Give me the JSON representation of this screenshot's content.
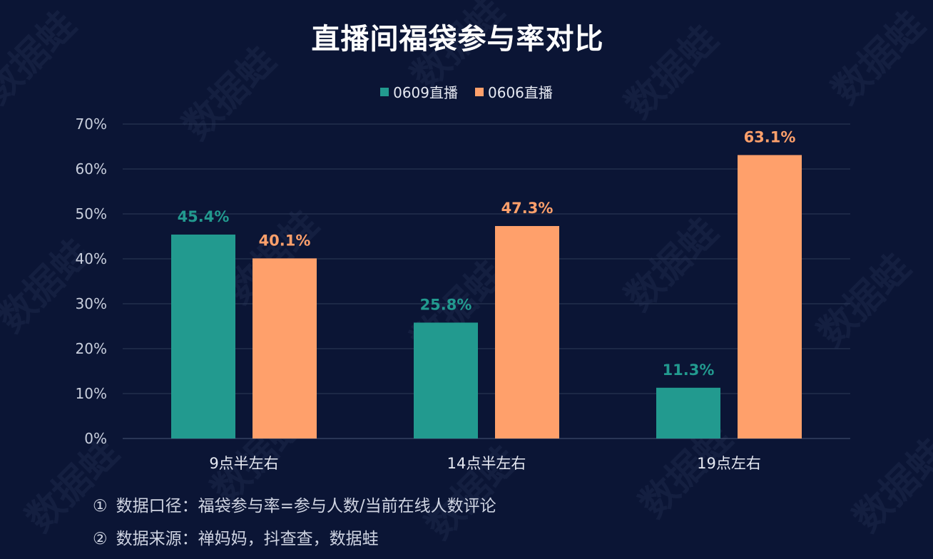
{
  "header": {
    "title": "直播间福袋参与率对比"
  },
  "watermark": {
    "text": "数据蛙"
  },
  "notes": [
    {
      "mark": "①",
      "text": "数据口径：福袋参与率=参与人数/当前在线人数评论"
    },
    {
      "mark": "②",
      "text": "数据来源：禅妈妈，抖查查，数据蛙"
    }
  ],
  "colors": {
    "series_a": "#229a8f",
    "series_b": "#ffa06b",
    "background": "#0b1535",
    "grid": "#2c3a58",
    "axis_text": "#c9cfdd"
  },
  "chart_data": {
    "type": "bar",
    "title": "直播间福袋参与率对比",
    "categories": [
      "9点半左右",
      "14点半左右",
      "19点左右"
    ],
    "series": [
      {
        "name": "0609直播",
        "values": [
          45.4,
          25.8,
          11.3
        ],
        "labels": [
          "45.4%",
          "25.8%",
          "11.3%"
        ]
      },
      {
        "name": "0606直播",
        "values": [
          40.1,
          47.3,
          63.1
        ],
        "labels": [
          "40.1%",
          "47.3%",
          "63.1%"
        ]
      }
    ],
    "ylim": [
      0,
      70
    ],
    "yticks": [
      "0%",
      "10%",
      "20%",
      "30%",
      "40%",
      "50%",
      "60%",
      "70%"
    ],
    "ytick_values": [
      0,
      10,
      20,
      30,
      40,
      50,
      60,
      70
    ],
    "grid": true,
    "legend": "top-center",
    "xlabel": "",
    "ylabel": ""
  }
}
